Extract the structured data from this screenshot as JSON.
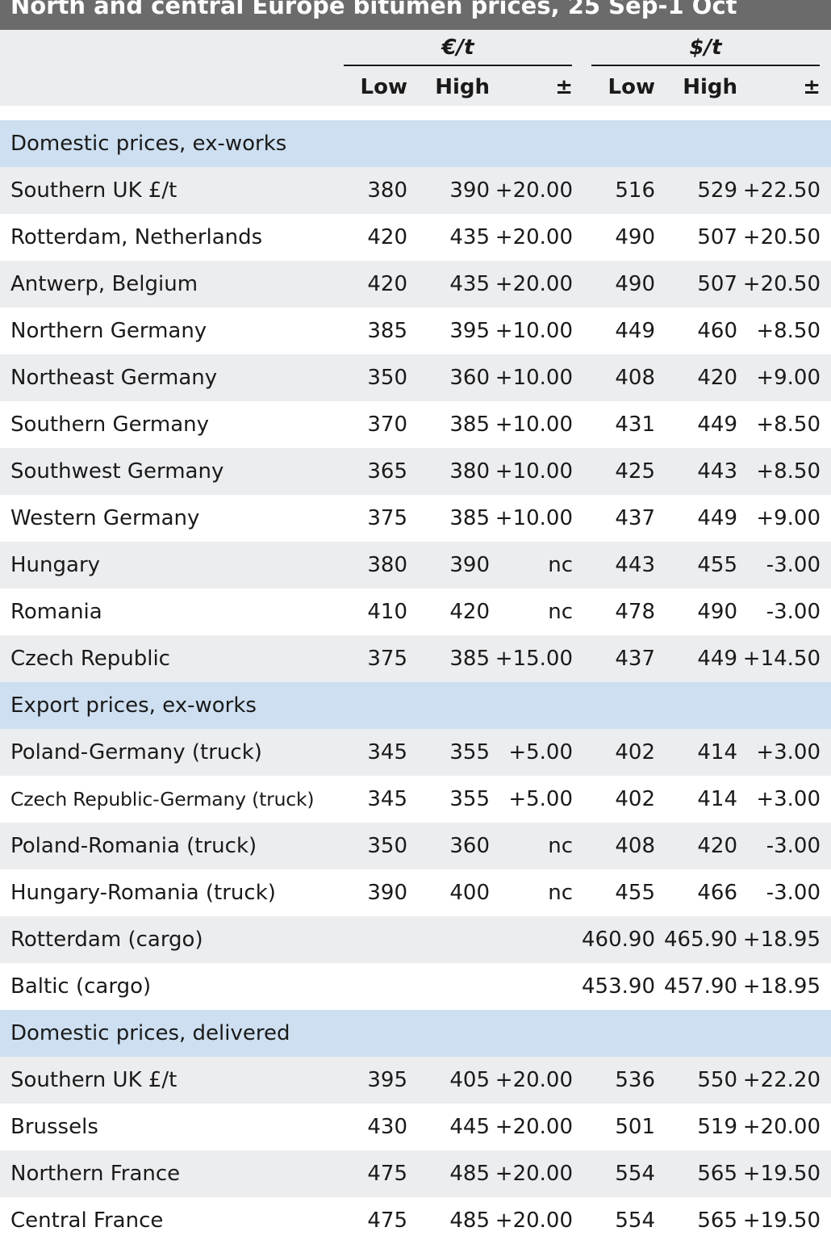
{
  "title": "North and central Europe bitumen prices, 25 Sep-1 Oct",
  "units": {
    "eur": "€/t",
    "usd": "$/t"
  },
  "columns": [
    "Low",
    "High",
    "±",
    "Low",
    "High",
    "±"
  ],
  "rows": [
    {
      "type": "section",
      "label": "Domestic prices, ex-works"
    },
    {
      "type": "data",
      "label": "Southern UK £/t",
      "values": [
        "380",
        "390",
        "+20.00",
        "516",
        "529",
        "+22.50"
      ]
    },
    {
      "type": "data",
      "label": "Rotterdam, Netherlands",
      "values": [
        "420",
        "435",
        "+20.00",
        "490",
        "507",
        "+20.50"
      ]
    },
    {
      "type": "data",
      "label": "Antwerp, Belgium",
      "values": [
        "420",
        "435",
        "+20.00",
        "490",
        "507",
        "+20.50"
      ]
    },
    {
      "type": "data",
      "label": "Northern Germany",
      "values": [
        "385",
        "395",
        "+10.00",
        "449",
        "460",
        "+8.50"
      ]
    },
    {
      "type": "data",
      "label": "Northeast Germany",
      "values": [
        "350",
        "360",
        "+10.00",
        "408",
        "420",
        "+9.00"
      ]
    },
    {
      "type": "data",
      "label": "Southern Germany",
      "values": [
        "370",
        "385",
        "+10.00",
        "431",
        "449",
        "+8.50"
      ]
    },
    {
      "type": "data",
      "label": "Southwest Germany",
      "values": [
        "365",
        "380",
        "+10.00",
        "425",
        "443",
        "+8.50"
      ]
    },
    {
      "type": "data",
      "label": "Western Germany",
      "values": [
        "375",
        "385",
        "+10.00",
        "437",
        "449",
        "+9.00"
      ]
    },
    {
      "type": "data",
      "label": "Hungary",
      "values": [
        "380",
        "390",
        "nc",
        "443",
        "455",
        "-3.00"
      ]
    },
    {
      "type": "data",
      "label": "Romania",
      "values": [
        "410",
        "420",
        "nc",
        "478",
        "490",
        "-3.00"
      ]
    },
    {
      "type": "data",
      "label": "Czech Republic",
      "values": [
        "375",
        "385",
        "+15.00",
        "437",
        "449",
        "+14.50"
      ]
    },
    {
      "type": "section",
      "label": "Export prices, ex-works"
    },
    {
      "type": "data",
      "label": "Poland-Germany (truck)",
      "values": [
        "345",
        "355",
        "+5.00",
        "402",
        "414",
        "+3.00"
      ]
    },
    {
      "type": "data",
      "label": "Czech Republic-Germany (truck)",
      "narrow": true,
      "values": [
        "345",
        "355",
        "+5.00",
        "402",
        "414",
        "+3.00"
      ]
    },
    {
      "type": "data",
      "label": "Poland-Romania (truck)",
      "values": [
        "350",
        "360",
        "nc",
        "408",
        "420",
        "-3.00"
      ]
    },
    {
      "type": "data",
      "label": "Hungary-Romania (truck)",
      "values": [
        "390",
        "400",
        "nc",
        "455",
        "466",
        "-3.00"
      ]
    },
    {
      "type": "data",
      "label": "Rotterdam (cargo)",
      "values": [
        "",
        "",
        "",
        "460.90",
        "465.90",
        "+18.95"
      ]
    },
    {
      "type": "data",
      "label": "Baltic (cargo)",
      "values": [
        "",
        "",
        "",
        "453.90",
        "457.90",
        "+18.95"
      ]
    },
    {
      "type": "section",
      "label": "Domestic prices, delivered"
    },
    {
      "type": "data",
      "label": "Southern UK £/t",
      "values": [
        "395",
        "405",
        "+20.00",
        "536",
        "550",
        "+22.20"
      ]
    },
    {
      "type": "data",
      "label": "Brussels",
      "values": [
        "430",
        "445",
        "+20.00",
        "501",
        "519",
        "+20.00"
      ]
    },
    {
      "type": "data",
      "label": "Northern France",
      "values": [
        "475",
        "485",
        "+20.00",
        "554",
        "565",
        "+19.50"
      ]
    },
    {
      "type": "data",
      "label": "Central France",
      "values": [
        "475",
        "485",
        "+20.00",
        "554",
        "565",
        "+19.50"
      ]
    }
  ]
}
